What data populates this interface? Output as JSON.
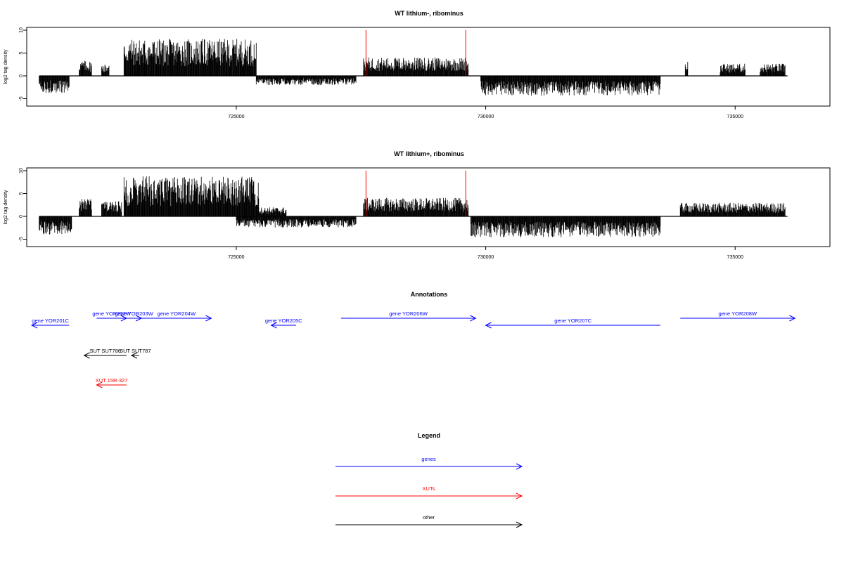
{
  "chart_data": [
    {
      "type": "bar",
      "title": "WT lithium-, ribominus",
      "xlabel": "",
      "ylabel": "log2 tag density",
      "xlim": [
        720800,
        736900
      ],
      "ylim": [
        -6,
        10
      ],
      "xticks": [
        725000,
        730000,
        735000
      ],
      "yticks": [
        -5,
        0,
        5,
        10
      ],
      "segments_plus": [
        {
          "from": 721850,
          "to": 722100,
          "level": 2.5
        },
        {
          "from": 722300,
          "to": 722450,
          "level": 2.0
        },
        {
          "from": 722750,
          "to": 725400,
          "level": 6.0
        },
        {
          "from": 727550,
          "to": 729650,
          "level": 3.0
        },
        {
          "from": 734000,
          "to": 734050,
          "level": 2.5
        },
        {
          "from": 734700,
          "to": 735200,
          "level": 2.0
        },
        {
          "from": 735500,
          "to": 736000,
          "level": 2.0
        }
      ],
      "segments_minus": [
        {
          "from": 721050,
          "to": 721650,
          "level": -2.8
        },
        {
          "from": 725400,
          "to": 727400,
          "level": -1.5
        },
        {
          "from": 729900,
          "to": 733500,
          "level": -3.2
        }
      ],
      "red_markers": [
        727600,
        729600
      ]
    },
    {
      "type": "bar",
      "title": "WT lithium+, ribominus",
      "xlabel": "",
      "ylabel": "log2 tag density",
      "xlim": [
        720800,
        736900
      ],
      "ylim": [
        -6,
        10
      ],
      "xticks": [
        725000,
        730000,
        735000
      ],
      "yticks": [
        -5,
        0,
        5,
        10
      ],
      "segments_plus": [
        {
          "from": 721850,
          "to": 722100,
          "level": 3.0
        },
        {
          "from": 722300,
          "to": 722700,
          "level": 2.5
        },
        {
          "from": 722750,
          "to": 725450,
          "level": 6.5
        },
        {
          "from": 725450,
          "to": 726000,
          "level": 1.5
        },
        {
          "from": 727550,
          "to": 729650,
          "level": 3.0
        },
        {
          "from": 733900,
          "to": 736000,
          "level": 2.2
        }
      ],
      "segments_minus": [
        {
          "from": 721050,
          "to": 721700,
          "level": -3.0
        },
        {
          "from": 725000,
          "to": 727400,
          "level": -1.8
        },
        {
          "from": 729700,
          "to": 733500,
          "level": -3.4
        }
      ],
      "red_markers": [
        727600,
        729600
      ]
    }
  ],
  "annotations": {
    "title": "Annotations",
    "xlim": [
      720800,
      736900
    ],
    "features": [
      {
        "label": "gene YOR201C",
        "kind": "gene",
        "from": 721650,
        "to": 720900,
        "row": 1
      },
      {
        "label": "gene YOR202W",
        "kind": "gene",
        "from": 722200,
        "to": 722800,
        "row": 0
      },
      {
        "label": "gene YOR203W",
        "kind": "gene",
        "from": 722800,
        "to": 723100,
        "row": 0
      },
      {
        "label": "gene YOR204W",
        "kind": "gene",
        "from": 723100,
        "to": 724500,
        "row": 0
      },
      {
        "label": "gene YOR205C",
        "kind": "gene",
        "from": 726200,
        "to": 725700,
        "row": 1
      },
      {
        "label": "gene YOR206W",
        "kind": "gene",
        "from": 727100,
        "to": 729800,
        "row": 0
      },
      {
        "label": "gene YOR207C",
        "kind": "gene",
        "from": 733500,
        "to": 730000,
        "row": 1
      },
      {
        "label": "gene YOR208W",
        "kind": "gene",
        "from": 733900,
        "to": 736200,
        "row": 0
      },
      {
        "label": "SUT SUT786",
        "kind": "other",
        "from": 722800,
        "to": 721950,
        "row": 0
      },
      {
        "label": "SUT SUT787",
        "kind": "other",
        "from": 723050,
        "to": 722900,
        "row": 0
      },
      {
        "label": "XUT 15R-327",
        "kind": "xut",
        "from": 722800,
        "to": 722200,
        "row": 0
      }
    ]
  },
  "legend": {
    "title": "Legend",
    "items": [
      {
        "label": "genes",
        "color": "#0000ff"
      },
      {
        "label": "XUTs",
        "color": "#ff0000"
      },
      {
        "label": "other",
        "color": "#000000"
      }
    ]
  },
  "colors": {
    "gene": "#0000ff",
    "xut": "#ff0000",
    "other": "#000000",
    "signal": "#000000",
    "marker": "#ff0000"
  }
}
